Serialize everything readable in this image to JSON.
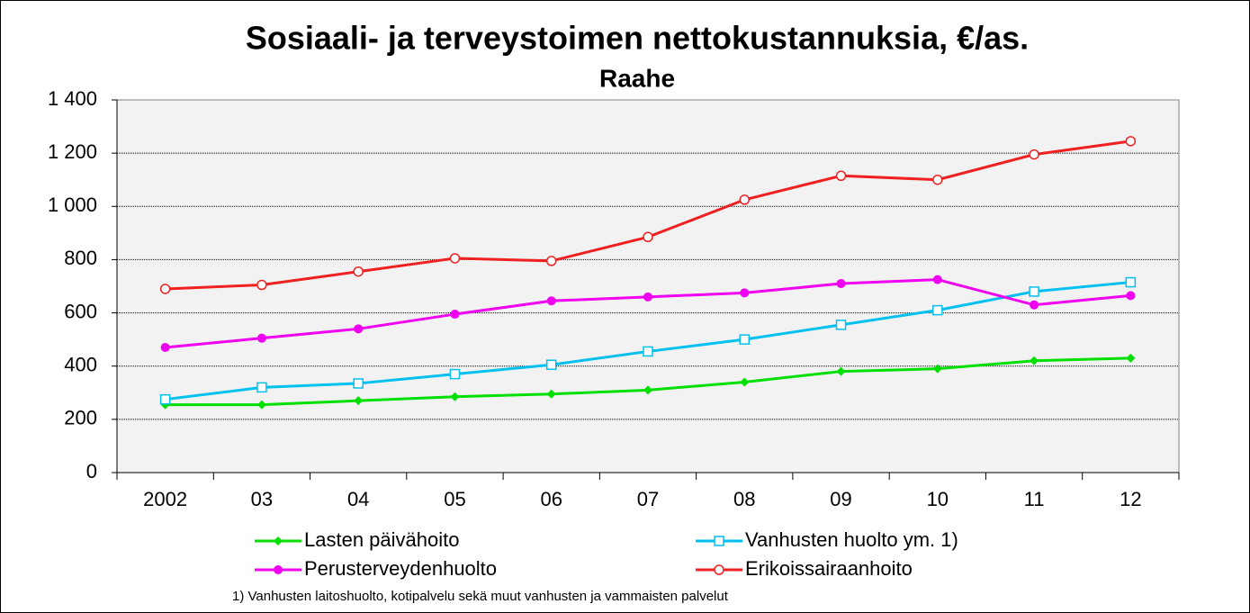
{
  "chart_data": {
    "type": "line",
    "title": "Sosiaali- ja terveystoimen nettokustannuksia, €/as.",
    "subtitle": "Raahe",
    "categories": [
      "2002",
      "03",
      "04",
      "05",
      "06",
      "07",
      "08",
      "09",
      "10",
      "11",
      "12"
    ],
    "series": [
      {
        "name": "Lasten päivähoito",
        "color": "#00e000",
        "marker": "diamond",
        "values": [
          255,
          255,
          270,
          285,
          295,
          310,
          340,
          380,
          390,
          420,
          430
        ]
      },
      {
        "name": "Vanhusten huolto ym. 1)",
        "color": "#00c0f0",
        "marker": "open-square",
        "values": [
          275,
          320,
          335,
          370,
          405,
          455,
          500,
          555,
          610,
          680,
          715
        ]
      },
      {
        "name": "Perusterveydenhuolto",
        "color": "#f000f0",
        "marker": "circle",
        "values": [
          470,
          505,
          540,
          595,
          645,
          660,
          675,
          710,
          725,
          630,
          665
        ]
      },
      {
        "name": "Erikoissairaanhoito",
        "color": "#f02020",
        "marker": "open-circle",
        "values": [
          690,
          705,
          755,
          805,
          795,
          885,
          1025,
          1115,
          1100,
          1195,
          1245
        ]
      }
    ],
    "ylim": [
      0,
      1400
    ],
    "yticks": [
      0,
      200,
      400,
      600,
      800,
      {
        "value": 1000,
        "label": "1 000"
      },
      {
        "value": 1200,
        "label": "1 200"
      },
      {
        "value": 1400,
        "label": "1 400"
      }
    ],
    "grid": true,
    "legend": "bottom",
    "footnote": "1) Vanhusten laitoshuolto, kotipalvelu sekä muut vanhusten ja vammaisten palvelut"
  }
}
